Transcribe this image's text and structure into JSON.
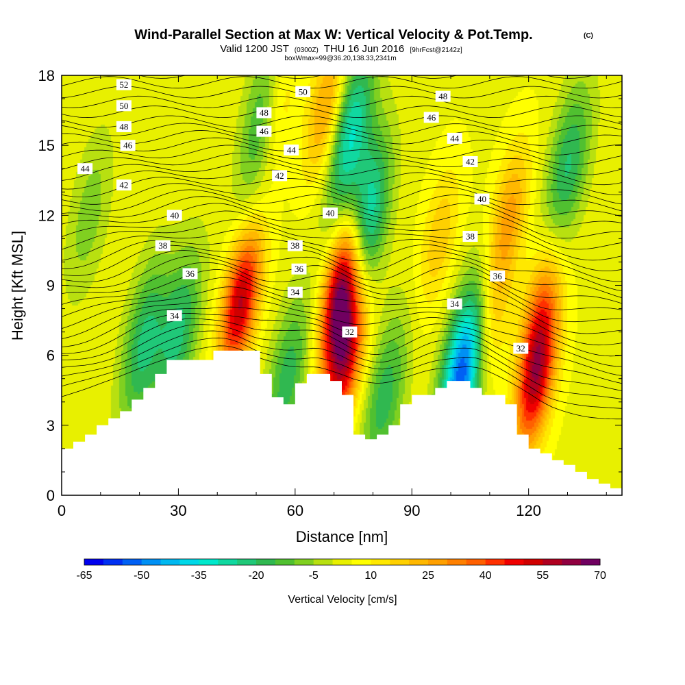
{
  "chart_data": {
    "type": "heatmap",
    "title": "Wind-Parallel Section at Max W: Vertical Velocity & Pot.Temp.",
    "title_units": "(C)",
    "subtitle_prefix": "Valid 1200 JST",
    "subtitle_utc": "(0300Z)",
    "subtitle_date": "THU 16 Jun 2016",
    "subtitle_forecast": "[9hrFcst@2142z]",
    "subtitle_box": "boxWmax=99@36.20,138.33,2341m",
    "xlabel": "Distance [nm]",
    "ylabel": "Height [Kft MSL]",
    "xlim": [
      0,
      144
    ],
    "ylim": [
      0,
      18
    ],
    "x_ticks": [
      0,
      30,
      60,
      90,
      120
    ],
    "x_tick_labels": [
      "0",
      "30",
      "60",
      "90",
      "120"
    ],
    "y_ticks": [
      0,
      3,
      6,
      9,
      12,
      15,
      18
    ],
    "y_tick_labels": [
      "0",
      "3",
      "6",
      "9",
      "12",
      "15",
      "18"
    ],
    "colorbar": {
      "label": "Vertical Velocity [cm/s]",
      "tick_labels": [
        "-65",
        "-50",
        "-35",
        "-20",
        "-5",
        "10",
        "25",
        "40",
        "55",
        "70"
      ],
      "levels": [
        -65,
        -60,
        -55,
        -50,
        -45,
        -40,
        -35,
        -30,
        -25,
        -20,
        -15,
        -10,
        -5,
        0,
        5,
        10,
        15,
        20,
        25,
        30,
        35,
        40,
        45,
        50,
        55,
        60,
        65,
        70
      ],
      "colors": [
        "#0000ee",
        "#0030f2",
        "#0060f4",
        "#0090f4",
        "#00b8f0",
        "#00d8e8",
        "#00e8cc",
        "#10d8a0",
        "#20c878",
        "#30b850",
        "#50c030",
        "#80d020",
        "#b8e010",
        "#e8f000",
        "#ffff00",
        "#ffe800",
        "#ffd000",
        "#ffb800",
        "#ffa000",
        "#ff8000",
        "#ff6000",
        "#ff3000",
        "#f00000",
        "#d00000",
        "#b00020",
        "#900040",
        "#700060"
      ]
    },
    "terrain_profile": {
      "x": [
        0,
        3,
        6,
        9,
        12,
        15,
        18,
        21,
        24,
        27,
        30,
        33,
        36,
        39,
        42,
        45,
        48,
        51,
        54,
        57,
        60,
        63,
        66,
        69,
        72,
        75,
        78,
        81,
        84,
        87,
        90,
        93,
        96,
        99,
        102,
        105,
        108,
        111,
        114,
        117,
        120,
        123,
        126,
        129,
        132,
        135,
        138,
        141,
        144
      ],
      "height": [
        2.0,
        2.3,
        2.6,
        3.0,
        3.3,
        3.6,
        4.1,
        4.6,
        5.2,
        5.8,
        5.8,
        5.8,
        5.8,
        6.2,
        6.2,
        6.2,
        6.2,
        5.2,
        4.2,
        3.9,
        4.8,
        5.2,
        5.2,
        4.9,
        4.3,
        2.6,
        2.4,
        2.6,
        3.0,
        3.9,
        4.3,
        4.3,
        4.6,
        4.9,
        4.9,
        4.6,
        4.3,
        4.3,
        3.9,
        2.6,
        2.0,
        1.8,
        1.5,
        1.3,
        1.0,
        0.7,
        0.5,
        0.3,
        0.3
      ]
    },
    "vertical_velocity_features": [
      {
        "x": 46,
        "y": 8.3,
        "w": 52,
        "kind": "updraft"
      },
      {
        "x": 72,
        "y": 8.8,
        "w": 68,
        "kind": "updraft"
      },
      {
        "x": 73,
        "y": 5.9,
        "w": 48,
        "kind": "updraft"
      },
      {
        "x": 122,
        "y": 5.0,
        "w": 48,
        "kind": "updraft"
      },
      {
        "x": 123,
        "y": 8.0,
        "w": 25,
        "kind": "updraft"
      },
      {
        "x": 115,
        "y": 12.0,
        "w": 22,
        "kind": "updraft"
      },
      {
        "x": 110,
        "y": 7.5,
        "w": 18,
        "kind": "updraft"
      },
      {
        "x": 97,
        "y": 11.0,
        "w": 15,
        "kind": "updraft"
      },
      {
        "x": 68,
        "y": 16.5,
        "w": 25,
        "kind": "updraft"
      },
      {
        "x": 55,
        "y": 16.5,
        "w": 22,
        "kind": "updraft"
      },
      {
        "x": 103,
        "y": 5.2,
        "w": -60,
        "kind": "downdraft"
      },
      {
        "x": 78,
        "y": 11.5,
        "w": -40,
        "kind": "downdraft"
      },
      {
        "x": 74,
        "y": 15.5,
        "w": -35,
        "kind": "downdraft"
      },
      {
        "x": 52,
        "y": 16.0,
        "w": -28,
        "kind": "downdraft"
      },
      {
        "x": 21,
        "y": 6.5,
        "w": -25,
        "kind": "downdraft"
      },
      {
        "x": 30,
        "y": 6.9,
        "w": -25,
        "kind": "downdraft"
      },
      {
        "x": 58,
        "y": 5.0,
        "w": -22,
        "kind": "downdraft"
      },
      {
        "x": 83,
        "y": 4.2,
        "w": -22,
        "kind": "downdraft"
      },
      {
        "x": 130,
        "y": 14.0,
        "w": -25,
        "kind": "downdraft"
      },
      {
        "x": 7,
        "y": 12.0,
        "w": -12,
        "kind": "downdraft"
      }
    ],
    "theta_contour_labels": [
      {
        "value": "52",
        "x": 16,
        "y": 17.6
      },
      {
        "value": "50",
        "x": 16,
        "y": 16.7
      },
      {
        "value": "48",
        "x": 16,
        "y": 15.8
      },
      {
        "value": "46",
        "x": 17,
        "y": 15.0
      },
      {
        "value": "44",
        "x": 6,
        "y": 14.0
      },
      {
        "value": "42",
        "x": 16,
        "y": 13.3
      },
      {
        "value": "40",
        "x": 29,
        "y": 12.0
      },
      {
        "value": "38",
        "x": 26,
        "y": 10.7
      },
      {
        "value": "36",
        "x": 33,
        "y": 9.5
      },
      {
        "value": "34",
        "x": 29,
        "y": 7.7
      },
      {
        "value": "50",
        "x": 62,
        "y": 17.3
      },
      {
        "value": "48",
        "x": 52,
        "y": 16.4
      },
      {
        "value": "46",
        "x": 52,
        "y": 15.6
      },
      {
        "value": "44",
        "x": 59,
        "y": 14.8
      },
      {
        "value": "42",
        "x": 56,
        "y": 13.7
      },
      {
        "value": "40",
        "x": 69,
        "y": 12.1
      },
      {
        "value": "38",
        "x": 60,
        "y": 10.7
      },
      {
        "value": "36",
        "x": 61,
        "y": 9.7
      },
      {
        "value": "34",
        "x": 60,
        "y": 8.7
      },
      {
        "value": "32",
        "x": 74,
        "y": 7.0
      },
      {
        "value": "48",
        "x": 98,
        "y": 17.1
      },
      {
        "value": "46",
        "x": 95,
        "y": 16.2
      },
      {
        "value": "44",
        "x": 101,
        "y": 15.3
      },
      {
        "value": "42",
        "x": 105,
        "y": 14.3
      },
      {
        "value": "40",
        "x": 108,
        "y": 12.7
      },
      {
        "value": "38",
        "x": 105,
        "y": 11.1
      },
      {
        "value": "36",
        "x": 112,
        "y": 9.4
      },
      {
        "value": "34",
        "x": 101,
        "y": 8.2
      },
      {
        "value": "32",
        "x": 118,
        "y": 6.3
      }
    ]
  }
}
